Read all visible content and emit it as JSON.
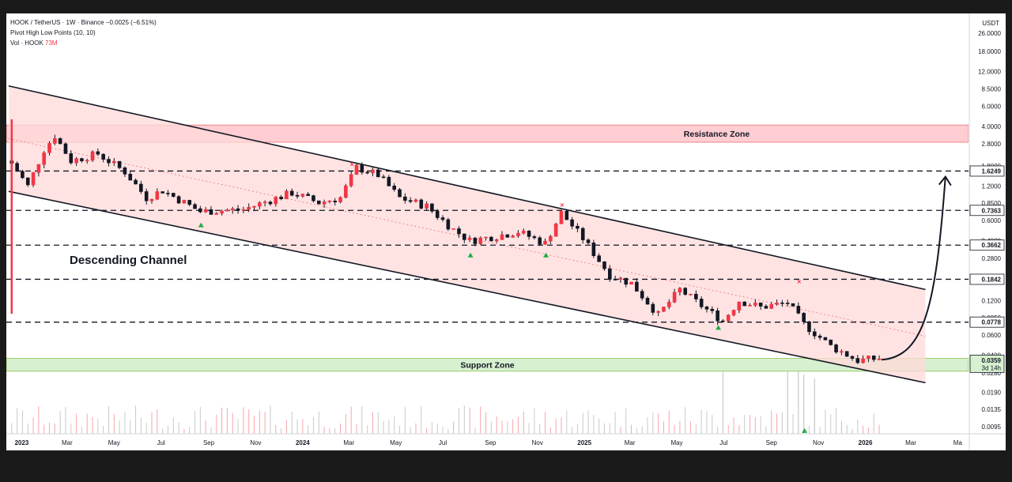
{
  "legend": {
    "symbol": "HOOK / TetherUS · 1W · Binance",
    "change": "−0.0025 (−6.51%)",
    "indicator": "Pivot High Low Points (10, 10)",
    "vol_label": "Vol · HOOK",
    "vol_value": "73M"
  },
  "chart_data": {
    "type": "candlestick",
    "y_scale": "log",
    "y_unit": "USDT",
    "y_ticks": [
      "26.0000",
      "18.0000",
      "12.0000",
      "8.5000",
      "6.0000",
      "4.0000",
      "2.8000",
      "1.8000",
      "1.2000",
      "0.8500",
      "0.6000",
      "0.4000",
      "0.2800",
      "0.1800",
      "0.1200",
      "0.0850",
      "0.0600",
      "0.0400",
      "0.0280",
      "0.0190",
      "0.0135",
      "0.0095"
    ],
    "y_tick_values": [
      26,
      18,
      12,
      8.5,
      6,
      4,
      2.8,
      1.8,
      1.2,
      0.85,
      0.6,
      0.4,
      0.28,
      0.18,
      0.12,
      0.085,
      0.06,
      0.04,
      0.028,
      0.019,
      0.0135,
      0.0095
    ],
    "x_ticks": [
      "2023",
      "Mar",
      "May",
      "Jul",
      "Sep",
      "Nov",
      "2024",
      "Mar",
      "May",
      "Jul",
      "Sep",
      "Nov",
      "2025",
      "Mar",
      "May",
      "Jul",
      "Sep",
      "Nov",
      "2026",
      "Mar",
      "Ma"
    ],
    "x_tick_dates": [
      "2023-01",
      "2023-03",
      "2023-05",
      "2023-07",
      "2023-09",
      "2023-11",
      "2024-01",
      "2024-03",
      "2024-05",
      "2024-07",
      "2024-09",
      "2024-11",
      "2025-01",
      "2025-03",
      "2025-05",
      "2025-07",
      "2025-09",
      "2025-11",
      "2026-01",
      "2026-03",
      "2026-05"
    ],
    "price_levels": [
      {
        "label": "1.6249",
        "value": 1.6249
      },
      {
        "label": "0.7363",
        "value": 0.7363
      },
      {
        "label": "0.3662",
        "value": 0.3662
      },
      {
        "label": "0.1842",
        "value": 0.1842
      },
      {
        "label": "0.0778",
        "value": 0.0778
      }
    ],
    "current_price": {
      "label": "0.0359",
      "value": 0.0359,
      "countdown": "3d 14h"
    },
    "zones": [
      {
        "label": "Resistance Zone",
        "low": 2.9,
        "high": 4.1,
        "color": "#ffcdd2"
      },
      {
        "label": "Support Zone",
        "low": 0.029,
        "high": 0.0375,
        "color": "#d7f0d0"
      }
    ],
    "channel": {
      "label": "Descending Channel",
      "upper": [
        {
          "date": "2022-12-15",
          "price": 9.0
        },
        {
          "date": "2026-03-20",
          "price": 0.15
        }
      ],
      "lower": [
        {
          "date": "2022-12-15",
          "price": 1.08
        },
        {
          "date": "2026-03-20",
          "price": 0.023
        }
      ]
    },
    "projection_arrow": {
      "from": {
        "date": "2026-01-22",
        "price": 0.0365
      },
      "to": {
        "date": "2026-04-15",
        "price": 1.45
      }
    },
    "pivot_high_markers": [
      {
        "date": "2024-03-05",
        "price": 1.86
      },
      {
        "date": "2024-12-03",
        "price": 0.82
      },
      {
        "date": "2025-10-07",
        "price": 0.175
      }
    ],
    "pivot_low_markers": [
      {
        "date": "2023-08-22",
        "price": 0.55
      },
      {
        "date": "2024-08-06",
        "price": 0.3
      },
      {
        "date": "2024-11-12",
        "price": 0.3
      },
      {
        "date": "2025-06-24",
        "price": 0.07
      },
      {
        "date": "2025-10-14",
        "price": 0.0088
      }
    ],
    "colors": {
      "up": "#089981",
      "down": "#f23645",
      "candle_down": "#131722",
      "candle_up": "#ffffff",
      "channel_fill": "#ffdada",
      "level_line": "#131722"
    }
  }
}
